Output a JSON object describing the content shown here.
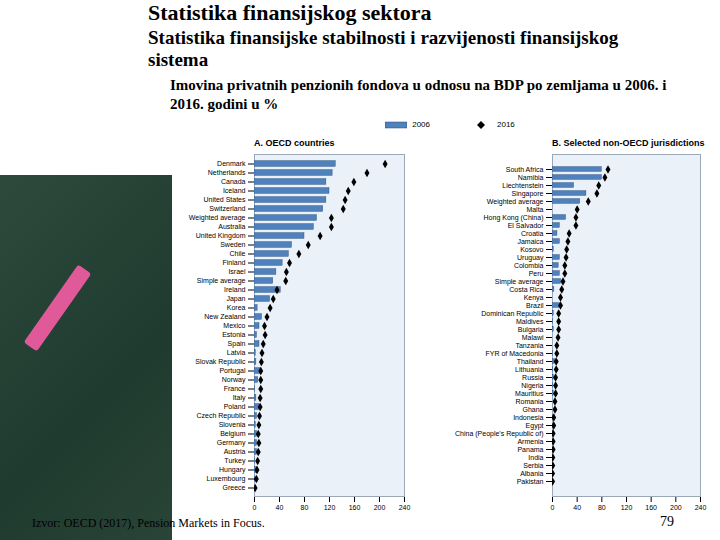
{
  "slide": {
    "heading": "Statistika finansijskog sektora",
    "subheading": "Statistika finansijske stabilnosti i razvijenosti finansijskog sistema",
    "caption": "Imovina privatnih penzionih fondova u odnosu na BDP po zemljama u 2006. i 2016. godini u %",
    "source": "Izvor: OECD (2017), Pension Markets in Focus.",
    "page": "79"
  },
  "chart_data": [
    {
      "type": "bar",
      "title": "A. OECD countries",
      "orientation": "horizontal",
      "grid": false,
      "legend": "top",
      "categories": [
        "Denmark",
        "Netherlands",
        "Canada",
        "Iceland",
        "United States",
        "Switzerland",
        "Weighted average",
        "Australia",
        "United Kingdom",
        "Sweden",
        "Chile",
        "Finland",
        "Israel",
        "Simple average",
        "Ireland",
        "Japan",
        "Korea",
        "New Zealand",
        "Mexico",
        "Estonia",
        "Spain",
        "Latvia",
        "Slovak Republic",
        "Portugal",
        "Norway",
        "France",
        "Italy",
        "Poland",
        "Czech Republic",
        "Slovenia",
        "Belgium",
        "Germany",
        "Austria",
        "Turkey",
        "Hungary",
        "Luxembourg",
        "Greece"
      ],
      "series": [
        {
          "name": "2006",
          "type": "bar",
          "color": "#4f81bd",
          "values": [
            130,
            125,
            115,
            120,
            115,
            110,
            100,
            95,
            80,
            60,
            55,
            45,
            35,
            30,
            42,
            25,
            5,
            12,
            8,
            4,
            8,
            2,
            3,
            10,
            6,
            1,
            3,
            8,
            4,
            2,
            4,
            4,
            4,
            1,
            5,
            1,
            0
          ]
        },
        {
          "name": "2016",
          "type": "scatter",
          "marker": "diamond",
          "color": "#000000",
          "values": [
            209,
            180,
            159,
            150,
            145,
            142,
            123,
            123,
            105,
            86,
            71,
            56,
            51,
            50,
            36,
            30,
            25,
            20,
            16,
            17,
            14,
            12,
            11,
            10,
            10,
            10,
            9,
            9,
            8,
            7,
            6,
            7,
            6,
            5,
            4,
            3,
            1
          ]
        }
      ],
      "xlim": [
        0,
        240
      ],
      "xticks": [
        0,
        40,
        80,
        120,
        160,
        200,
        240
      ]
    },
    {
      "type": "bar",
      "title": "B. Selected non-OECD jurisdictions",
      "orientation": "horizontal",
      "grid": false,
      "legend": "top",
      "categories": [
        "South Africa",
        "Namibia",
        "Liechtenstein",
        "Singapore",
        "Weighted average",
        "Malta",
        "Hong Kong (China)",
        "El Salvador",
        "Croatia",
        "Jamaica",
        "Kosovo",
        "Uruguay",
        "Colombia",
        "Peru",
        "Simple average",
        "Costa Rica",
        "Kenya",
        "Brazil",
        "Dominican Republic",
        "Maldives",
        "Bulgaria",
        "Malawi",
        "Tanzania",
        "FYR of Macedonia",
        "Thailand",
        "Lithuania",
        "Russia",
        "Nigeria",
        "Mauritius",
        "Romania",
        "Ghana",
        "Indonesia",
        "Egypt",
        "China (People's Republic of)",
        "Armenia",
        "Panama",
        "India",
        "Serbia",
        "Albania",
        "Pakistan"
      ],
      "series": [
        {
          "name": "2006",
          "type": "bar",
          "color": "#4f81bd",
          "values": [
            80,
            80,
            35,
            55,
            45,
            null,
            22,
            12,
            8,
            12,
            2,
            12,
            10,
            12,
            14,
            3,
            null,
            12,
            2,
            1,
            2,
            null,
            null,
            1,
            4,
            1,
            2,
            1,
            2,
            0,
            null,
            1,
            null,
            null,
            null,
            null,
            null,
            0,
            null,
            null
          ]
        },
        {
          "name": "2016",
          "type": "scatter",
          "marker": "diamond",
          "color": "#000000",
          "values": [
            90,
            85,
            75,
            72,
            58,
            40,
            38,
            38,
            27,
            25,
            23,
            22,
            20,
            20,
            17,
            15,
            13,
            13,
            10,
            10,
            10,
            9,
            7,
            7,
            6,
            6,
            5,
            5,
            5,
            4,
            4,
            2,
            2,
            1,
            1,
            1,
            0.5,
            0.4,
            0.1,
            0.1
          ]
        }
      ],
      "xlim": [
        0,
        240
      ],
      "xticks": [
        0,
        40,
        80,
        120,
        160,
        200,
        240
      ]
    }
  ]
}
